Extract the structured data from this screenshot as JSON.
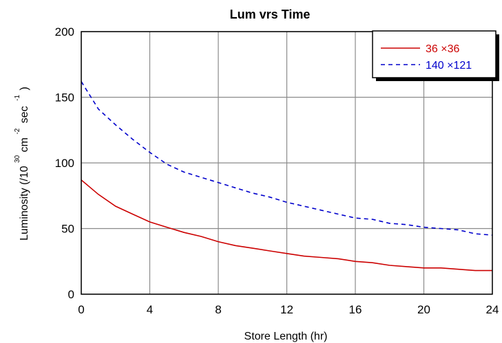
{
  "chart_data": {
    "type": "line",
    "title": "Lum vrs Time",
    "xlabel": "Store Length (hr)",
    "ylabel": {
      "prefix": "Luminosity (/10",
      "exp1": "30",
      "mid1": " cm",
      "exp2": "-2",
      "mid2": "sec",
      "exp3": "-1",
      "suffix": ")"
    },
    "xlim": [
      0,
      24
    ],
    "ylim": [
      0,
      200
    ],
    "xticks": [
      0,
      4,
      8,
      12,
      16,
      20,
      24
    ],
    "yticks": [
      0,
      50,
      100,
      150,
      200
    ],
    "grid": true,
    "legend_position": "top-right",
    "series": [
      {
        "name": "36 ×36",
        "color": "#cc0000",
        "dash": "solid",
        "x": [
          0,
          1,
          2,
          3,
          4,
          5,
          6,
          7,
          8,
          9,
          10,
          11,
          12,
          13,
          14,
          15,
          16,
          17,
          18,
          19,
          20,
          21,
          22,
          23,
          24
        ],
        "y": [
          87,
          76,
          67,
          61,
          55,
          51,
          47,
          44,
          40,
          37,
          35,
          33,
          31,
          29,
          28,
          27,
          25,
          24,
          22,
          21,
          20,
          20,
          19,
          18,
          18
        ]
      },
      {
        "name": "140 ×121",
        "color": "#0000cc",
        "dash": "dashed",
        "x": [
          0,
          1,
          2,
          3,
          4,
          5,
          6,
          7,
          8,
          9,
          10,
          11,
          12,
          13,
          14,
          15,
          16,
          17,
          18,
          19,
          20,
          21,
          22,
          23,
          24
        ],
        "y": [
          162,
          141,
          129,
          118,
          108,
          99,
          93,
          89,
          85,
          81,
          77,
          74,
          70,
          67,
          64,
          61,
          58,
          57,
          54,
          53,
          51,
          50,
          49,
          46,
          45
        ]
      }
    ]
  }
}
